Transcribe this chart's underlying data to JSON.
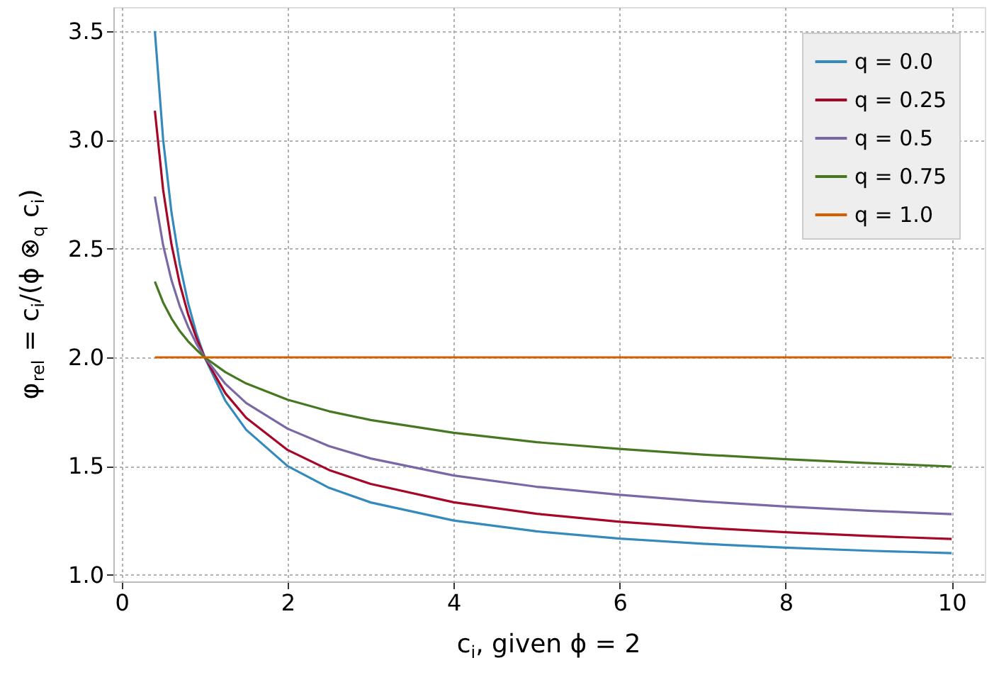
{
  "chart_data": {
    "type": "line",
    "xlabel": "c$_{i}$, given ϕ = 2",
    "ylabel": "φ$_{rel}$ = c$_{i}$/(ϕ ⊗$_{q}$ c$_{i}$)",
    "x": [
      0.4,
      0.5,
      0.6,
      0.7,
      0.8,
      0.9,
      1,
      1.25,
      1.5,
      2,
      2.5,
      3,
      4,
      5,
      6,
      7,
      8,
      9,
      10
    ],
    "series": [
      {
        "name": "q = 0.0",
        "color": "#348abd",
        "values": [
          3.5,
          3.0,
          2.667,
          2.429,
          2.25,
          2.111,
          2.0,
          1.8,
          1.667,
          1.5,
          1.4,
          1.333,
          1.25,
          1.2,
          1.167,
          1.143,
          1.125,
          1.111,
          1.1
        ]
      },
      {
        "name": "q = 0.25",
        "color": "#a60628",
        "values": [
          3.134,
          2.769,
          2.52,
          2.338,
          2.199,
          2.09,
          2.0,
          1.835,
          1.722,
          1.574,
          1.482,
          1.418,
          1.334,
          1.281,
          1.244,
          1.217,
          1.196,
          1.179,
          1.165
        ]
      },
      {
        "name": "q = 0.5",
        "color": "#7a68a6",
        "values": [
          2.739,
          2.515,
          2.355,
          2.235,
          2.141,
          2.063,
          2.0,
          1.878,
          1.79,
          1.672,
          1.592,
          1.535,
          1.457,
          1.405,
          1.368,
          1.338,
          1.314,
          1.295,
          1.279
        ]
      },
      {
        "name": "q = 0.75",
        "color": "#467821",
        "values": [
          2.348,
          2.252,
          2.179,
          2.121,
          2.074,
          2.035,
          2.0,
          1.932,
          1.88,
          1.805,
          1.752,
          1.712,
          1.653,
          1.61,
          1.579,
          1.553,
          1.532,
          1.514,
          1.498
        ]
      },
      {
        "name": "q = 1.0",
        "color": "#d55e00",
        "values": [
          2,
          2,
          2,
          2,
          2,
          2,
          2,
          2,
          2,
          2,
          2,
          2,
          2,
          2,
          2,
          2,
          2,
          2,
          2
        ]
      }
    ],
    "xlim": [
      -0.1,
      10.4
    ],
    "ylim": [
      0.97,
      3.61
    ],
    "xticks": [
      0,
      2,
      4,
      6,
      8,
      10
    ],
    "yticks": [
      {
        "value": 1,
        "label": "1.0"
      },
      1.5,
      {
        "value": 2,
        "label": "2.0"
      },
      2.5,
      {
        "value": 3,
        "label": "3.0"
      },
      3.5
    ],
    "grid": true,
    "legend": "top right",
    "line_style": "solid",
    "marker": "none"
  }
}
